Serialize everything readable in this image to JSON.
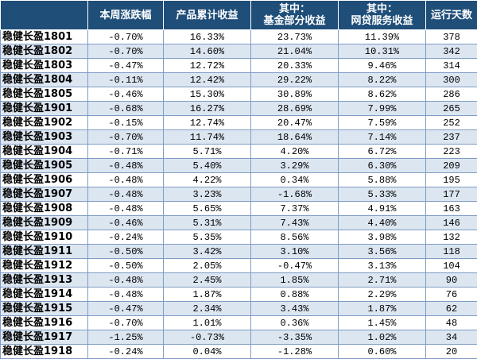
{
  "table": {
    "header": [
      [
        ""
      ],
      [
        "本周涨跌幅"
      ],
      [
        "产品累计收益"
      ],
      [
        "其中：",
        "基金部分收益"
      ],
      [
        "其中：",
        "网贷服务收益"
      ],
      [
        "运行天数"
      ]
    ],
    "rows": [
      [
        "稳健长盈1801",
        "-0.70%",
        "16.33%",
        "23.73%",
        "11.39%",
        "378"
      ],
      [
        "稳健长盈1802",
        "-0.70%",
        "14.60%",
        "21.04%",
        "10.31%",
        "342"
      ],
      [
        "稳健长盈1803",
        "-0.47%",
        "12.72%",
        "20.33%",
        "9.46%",
        "314"
      ],
      [
        "稳健长盈1804",
        "-0.11%",
        "12.42%",
        "29.22%",
        "8.22%",
        "300"
      ],
      [
        "稳健长盈1805",
        "-0.46%",
        "15.30%",
        "30.89%",
        "8.62%",
        "286"
      ],
      [
        "稳健长盈1901",
        "-0.68%",
        "16.27%",
        "28.69%",
        "7.99%",
        "265"
      ],
      [
        "稳健长盈1902",
        "-0.15%",
        "12.74%",
        "20.47%",
        "7.59%",
        "252"
      ],
      [
        "稳健长盈1903",
        "-0.70%",
        "11.74%",
        "18.64%",
        "7.14%",
        "237"
      ],
      [
        "稳健长盈1904",
        "-0.71%",
        "5.71%",
        "4.20%",
        "6.72%",
        "223"
      ],
      [
        "稳健长盈1905",
        "-0.48%",
        "5.40%",
        "3.29%",
        "6.30%",
        "209"
      ],
      [
        "稳健长盈1906",
        "-0.48%",
        "4.22%",
        "0.34%",
        "5.88%",
        "195"
      ],
      [
        "稳健长盈1907",
        "-0.48%",
        "3.23%",
        "-1.68%",
        "5.33%",
        "177"
      ],
      [
        "稳健长盈1908",
        "-0.48%",
        "5.65%",
        "7.37%",
        "4.91%",
        "163"
      ],
      [
        "稳健长盈1909",
        "-0.46%",
        "5.31%",
        "7.43%",
        "4.40%",
        "146"
      ],
      [
        "稳健长盈1910",
        "-0.24%",
        "5.35%",
        "8.56%",
        "3.98%",
        "132"
      ],
      [
        "稳健长盈1911",
        "-0.50%",
        "3.42%",
        "3.10%",
        "3.56%",
        "118"
      ],
      [
        "稳健长盈1912",
        "-0.50%",
        "2.05%",
        "-0.47%",
        "3.13%",
        "104"
      ],
      [
        "稳健长盈1913",
        "-0.48%",
        "2.45%",
        "1.85%",
        "2.71%",
        "90"
      ],
      [
        "稳健长盈1914",
        "-0.48%",
        "1.87%",
        "0.88%",
        "2.29%",
        "76"
      ],
      [
        "稳健长盈1915",
        "-0.47%",
        "2.34%",
        "3.43%",
        "1.87%",
        "62"
      ],
      [
        "稳健长盈1916",
        "-0.70%",
        "1.01%",
        "0.36%",
        "1.45%",
        "48"
      ],
      [
        "稳健长盈1917",
        "-1.25%",
        "-0.73%",
        "-3.35%",
        "1.02%",
        "34"
      ],
      [
        "稳健长盈1918",
        "-0.24%",
        "0.04%",
        "-1.28%",
        "0.60%",
        "20"
      ]
    ]
  }
}
